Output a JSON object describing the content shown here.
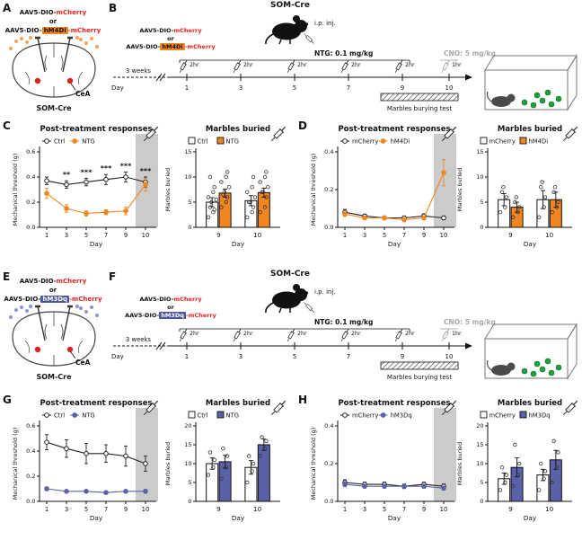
{
  "colors": {
    "orange": "#F0861F",
    "blue": "#5A61A9",
    "red": "#E8231F",
    "gray_cno": "#A8A8A8",
    "shade": "#CBCBCB",
    "marble_green": "#1FA03C",
    "cea_red": "#D8221F"
  },
  "panels": {
    "A": {
      "label": "A",
      "aav": "AAV5-DIO-",
      "mcherry": "mCherry",
      "or": "or",
      "tag": "hM4Di",
      "suffix": "-mCherry",
      "cea": "CeA",
      "som": "SOM-Cre",
      "accent": "#F2A25C"
    },
    "B": {
      "label": "B",
      "title": "SOM-Cre",
      "ip": "i.p. inj.",
      "aav": "AAV5-DIO-",
      "mcherry": "mCherry",
      "or": "or",
      "tag": "hM4Di",
      "suffix": "-mCherry",
      "ntg": "NTG: 0.1 mg/kg",
      "cno": "CNO: 5 mg/kg",
      "day": "Day",
      "weeks": "3 weeks",
      "days": [
        "1",
        "3",
        "5",
        "7",
        "9",
        "10"
      ],
      "hr2": "2hr",
      "hr1": "1hr",
      "marbles": "Marbles burying test"
    },
    "C": {
      "label": "C"
    },
    "D": {
      "label": "D"
    },
    "E": {
      "label": "E",
      "aav": "AAV5-DIO-",
      "mcherry": "mCherry",
      "or": "or",
      "tag": "hM3Dq",
      "suffix": "-mCherry",
      "cea": "CeA",
      "som": "SOM-Cre",
      "accent": "#8F97CE"
    },
    "F": {
      "label": "F",
      "title": "SOM-Cre",
      "ip": "i.p. inj.",
      "aav": "AAV5-DIO-",
      "mcherry": "mCherry",
      "or": "or",
      "tag": "hM3Dq",
      "suffix": "-mCherry",
      "ntg": "NTG: 0.1 mg/kg",
      "cno": "CNO: 5 mg/kg",
      "day": "Day",
      "weeks": "3 weeks",
      "days": [
        "1",
        "3",
        "5",
        "7",
        "9",
        "10"
      ],
      "hr2": "2hr",
      "hr1": "1hr",
      "marbles": "Marbles burying test"
    },
    "G": {
      "label": "G"
    },
    "H": {
      "label": "H"
    }
  },
  "chart_data": [
    {
      "id": "C_line",
      "type": "line",
      "title": "Post-treatment responses",
      "ylabel": "Mechanical threshold (g)",
      "xlabel": "Day",
      "x": [
        "1",
        "3",
        "5",
        "7",
        "9",
        "10"
      ],
      "ylim": [
        0,
        0.6
      ],
      "yticks": [
        0,
        0.2,
        0.4,
        0.6
      ],
      "ytick_labels": [
        "0.0",
        "0.2",
        "0.4",
        "0.6"
      ],
      "shaded_region": "day 10",
      "syringe": true,
      "legend_position": "top",
      "series": [
        {
          "name": "Ctrl",
          "color": "#222222",
          "marker": "open",
          "values": [
            0.37,
            0.34,
            0.36,
            0.38,
            0.4,
            0.36
          ],
          "err": [
            0.03,
            0.03,
            0.03,
            0.04,
            0.04,
            0.04
          ]
        },
        {
          "name": "NTG",
          "color": "#F0861F",
          "marker": "filled",
          "values": [
            0.27,
            0.15,
            0.11,
            0.12,
            0.13,
            0.34
          ],
          "err": [
            0.04,
            0.03,
            0.02,
            0.02,
            0.03,
            0.05
          ]
        }
      ],
      "sig": [
        "",
        "**",
        "***",
        "***",
        "***",
        "***"
      ]
    },
    {
      "id": "C_bar",
      "type": "bar",
      "title": "Marbles buried",
      "ylabel": "Marbles buried",
      "xlabel": "Day",
      "groups": [
        "9",
        "10"
      ],
      "ylim": [
        0,
        15
      ],
      "yticks": [
        0,
        5,
        10,
        15
      ],
      "ytick_labels": [
        "0",
        "5",
        "10",
        "15"
      ],
      "syringe": true,
      "series": [
        {
          "name": "Ctrl",
          "fill": "#FFFFFF",
          "values": [
            5.0,
            5.3
          ],
          "err": [
            0.9,
            1.0
          ],
          "points": [
            [
              2,
              3,
              3.5,
              4,
              5,
              5.5,
              6,
              7,
              8,
              10
            ],
            [
              2,
              3,
              4,
              5,
              5,
              6,
              7,
              8,
              10
            ]
          ]
        },
        {
          "name": "NTG",
          "fill": "#F0861F",
          "values": [
            6.8,
            6.9
          ],
          "err": [
            0.8,
            0.9
          ],
          "points": [
            [
              4,
              5,
              6,
              6.5,
              7,
              8,
              9,
              10,
              11
            ],
            [
              3,
              4,
              6,
              7,
              7,
              8,
              9,
              10,
              11
            ]
          ]
        }
      ]
    },
    {
      "id": "D_line",
      "type": "line",
      "title": "Post-treatment responses",
      "ylabel": "Mechanical threshold (g)",
      "xlabel": "Day",
      "x": [
        "1",
        "3",
        "5",
        "7",
        "9",
        "10"
      ],
      "ylim": [
        0,
        0.4
      ],
      "yticks": [
        0,
        0.2,
        0.4
      ],
      "ytick_labels": [
        "0.0",
        "0.2",
        "0.4"
      ],
      "shaded_region": "day 10",
      "syringe": true,
      "legend_position": "top",
      "series": [
        {
          "name": "mCherry",
          "color": "#222222",
          "marker": "open",
          "values": [
            0.08,
            0.06,
            0.05,
            0.05,
            0.06,
            0.05
          ],
          "err": [
            0.015,
            0.01,
            0.01,
            0.01,
            0.012,
            0.01
          ]
        },
        {
          "name": "hM4Di",
          "color": "#F0861F",
          "marker": "filled",
          "values": [
            0.07,
            0.05,
            0.05,
            0.04,
            0.05,
            0.29
          ],
          "err": [
            0.012,
            0.01,
            0.01,
            0.01,
            0.01,
            0.07
          ]
        }
      ],
      "sig": [
        "",
        "",
        "",
        "",
        "",
        ""
      ]
    },
    {
      "id": "D_bar",
      "type": "bar",
      "title": "Marbles buried",
      "ylabel": "Marbles buried",
      "xlabel": "Day",
      "groups": [
        "9",
        "10"
      ],
      "ylim": [
        0,
        15
      ],
      "yticks": [
        0,
        5,
        10,
        15
      ],
      "ytick_labels": [
        "0",
        "5",
        "10",
        "15"
      ],
      "syringe": true,
      "series": [
        {
          "name": "mCherry",
          "fill": "#FFFFFF",
          "values": [
            5.5,
            5.5
          ],
          "err": [
            1.2,
            1.8
          ],
          "points": [
            [
              3,
              4,
              6,
              7,
              8
            ],
            [
              2,
              4,
              6,
              8,
              9
            ]
          ]
        },
        {
          "name": "hM4Di",
          "fill": "#F0861F",
          "values": [
            4.0,
            5.5
          ],
          "err": [
            1.0,
            1.5
          ],
          "points": [
            [
              2,
              3,
              4,
              5,
              6
            ],
            [
              3,
              4,
              5,
              7,
              8
            ]
          ]
        }
      ]
    },
    {
      "id": "G_line",
      "type": "line",
      "title": "Post-treatment responses",
      "ylabel": "Mechanical threshold (g)",
      "xlabel": "Day",
      "x": [
        "1",
        "3",
        "5",
        "7",
        "9",
        "10"
      ],
      "ylim": [
        0,
        0.6
      ],
      "yticks": [
        0,
        0.2,
        0.4,
        0.6
      ],
      "ytick_labels": [
        "0.0",
        "0.2",
        "0.4",
        "0.6"
      ],
      "shaded_region": "day 10",
      "syringe": true,
      "legend_position": "top",
      "series": [
        {
          "name": "Ctrl",
          "color": "#222222",
          "marker": "open",
          "values": [
            0.47,
            0.42,
            0.38,
            0.38,
            0.36,
            0.3
          ],
          "err": [
            0.06,
            0.07,
            0.08,
            0.07,
            0.08,
            0.06
          ]
        },
        {
          "name": "NTG",
          "color": "#5A61A9",
          "marker": "filled",
          "values": [
            0.1,
            0.08,
            0.08,
            0.07,
            0.08,
            0.08
          ],
          "err": [
            0.015,
            0.012,
            0.012,
            0.012,
            0.012,
            0.015
          ]
        }
      ],
      "sig": [
        "",
        "",
        "",
        "",
        "",
        ""
      ]
    },
    {
      "id": "G_bar",
      "type": "bar",
      "title": "Marbles buried",
      "ylabel": "Marbles buried",
      "xlabel": "Day",
      "groups": [
        "9",
        "10"
      ],
      "ylim": [
        0,
        20
      ],
      "yticks": [
        0,
        5,
        10,
        15,
        20
      ],
      "ytick_labels": [
        "0",
        "5",
        "10",
        "15",
        "20"
      ],
      "syringe": true,
      "series": [
        {
          "name": "Ctrl",
          "fill": "#FFFFFF",
          "values": [
            10,
            9
          ],
          "err": [
            1.5,
            1.8
          ],
          "points": [
            [
              7,
              9,
              11,
              13
            ],
            [
              5,
              8,
              10,
              12
            ]
          ]
        },
        {
          "name": "NTG",
          "fill": "#5A61A9",
          "values": [
            10.5,
            15
          ],
          "err": [
            1.7,
            1.5
          ],
          "points": [
            [
              6,
              9,
              12,
              14
            ],
            [
              12,
              14,
              16,
              17
            ]
          ]
        }
      ]
    },
    {
      "id": "H_line",
      "type": "line",
      "title": "Post-treatment responses",
      "ylabel": "Mechanical threshold (g)",
      "xlabel": "Day",
      "x": [
        "1",
        "3",
        "5",
        "7",
        "9",
        "10"
      ],
      "ylim": [
        0,
        0.4
      ],
      "yticks": [
        0,
        0.2,
        0.4
      ],
      "ytick_labels": [
        "0.0",
        "0.2",
        "0.4"
      ],
      "shaded_region": "day 10",
      "syringe": true,
      "legend_position": "top",
      "series": [
        {
          "name": "mCherry",
          "color": "#222222",
          "marker": "open",
          "values": [
            0.1,
            0.09,
            0.09,
            0.08,
            0.09,
            0.08
          ],
          "err": [
            0.015,
            0.012,
            0.012,
            0.012,
            0.012,
            0.012
          ]
        },
        {
          "name": "hM3Dq",
          "color": "#5A61A9",
          "marker": "filled",
          "values": [
            0.09,
            0.08,
            0.08,
            0.08,
            0.08,
            0.07
          ],
          "err": [
            0.012,
            0.01,
            0.01,
            0.01,
            0.01,
            0.01
          ]
        }
      ],
      "sig": [
        "",
        "",
        "",
        "",
        "",
        ""
      ]
    },
    {
      "id": "H_bar",
      "type": "bar",
      "title": "Marbles buried",
      "ylabel": "Marbles buried",
      "xlabel": "Day",
      "groups": [
        "9",
        "10"
      ],
      "ylim": [
        0,
        20
      ],
      "yticks": [
        0,
        5,
        10,
        15,
        20
      ],
      "ytick_labels": [
        "0",
        "5",
        "10",
        "15",
        "20"
      ],
      "syringe": true,
      "series": [
        {
          "name": "mCherry",
          "fill": "#FFFFFF",
          "values": [
            6,
            7
          ],
          "err": [
            1.5,
            1.5
          ],
          "points": [
            [
              3,
              5,
              7,
              9
            ],
            [
              3,
              6,
              8,
              10
            ]
          ]
        },
        {
          "name": "hM3Dq",
          "fill": "#5A61A9",
          "values": [
            9,
            11
          ],
          "err": [
            2.5,
            2.5
          ],
          "points": [
            [
              4,
              7,
              10,
              15
            ],
            [
              5,
              9,
              13,
              16
            ]
          ]
        }
      ]
    }
  ]
}
